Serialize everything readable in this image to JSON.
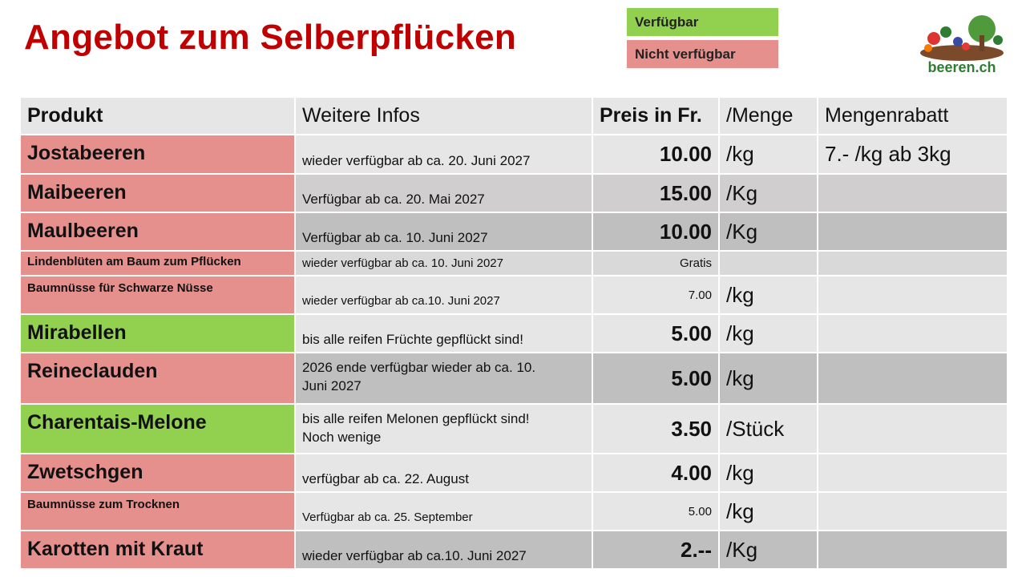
{
  "header": {
    "title": "Angebot zum Selberpflücken",
    "legend": [
      {
        "label": "Verfügbar",
        "color": "#92d050"
      },
      {
        "label": "Nicht verfügbar",
        "color": "#e6908e"
      }
    ],
    "logo": "beeren.ch"
  },
  "table": {
    "columns": [
      "Produkt",
      "Weitere Infos",
      "Preis in Fr.",
      "/Menge",
      "Mengenrabatt"
    ],
    "rows": [
      {
        "product": "Jostabeeren",
        "info": [
          "wieder verfügbar ab ca. 20. Juni 2027"
        ],
        "price": "10.00",
        "unit": "/kg",
        "discount": "7.-  /kg ab 3kg",
        "color": "#e6908e"
      },
      {
        "product": "Maibeeren",
        "info": [
          "Verfügbar ab ca. 20. Mai 2027"
        ],
        "price": "15.00",
        "unit": "/Kg",
        "color": "#e6908e"
      },
      {
        "product": "Maulbeeren",
        "info": [
          "Verfügbar ab ca. 10. Juni 2027"
        ],
        "price": "10.00",
        "unit": "/Kg",
        "color": "#e6908e"
      },
      {
        "product": "Lindenblüten am Baum zum Pflücken",
        "info": [
          " wieder verfügbar ab ca. 10. Juni 2027"
        ],
        "price": "Gratis",
        "color": "#e6908e"
      },
      {
        "product": "Baumnüsse für Schwarze Nüsse",
        "info": [
          "wieder verfügbar ab ca.10. Juni 2027"
        ],
        "price": "7.00",
        "unit": "/kg",
        "color": "#e6908e"
      },
      {
        "product": "Mirabellen",
        "info": [
          "bis alle reifen Früchte gepflückt sind!"
        ],
        "price": "5.00",
        "unit": "/kg",
        "color": "#92d050"
      },
      {
        "product": "Reineclauden",
        "info": [
          "2026 ende verfügbar wieder  ab ca. 10.",
          "Juni 2027"
        ],
        "price": "5.00",
        "unit": "/kg",
        "color": "#e6908e"
      },
      {
        "product": "Charentais-Melone",
        "info": [
          "bis alle reifen Melonen gepflückt sind!",
          "Noch wenige"
        ],
        "price": "3.50",
        "unit": "/Stück",
        "color": "#92d050"
      },
      {
        "product": "Zwetschgen",
        "info": [
          "verfügbar ab ca. 22. August"
        ],
        "price": "4.00",
        "unit": "/kg",
        "color": "#e6908e"
      },
      {
        "product": "Baumnüsse zum Trocknen",
        "info": [
          "Verfügbar ab ca. 25. September"
        ],
        "price": "5.00",
        "unit": "/kg",
        "color": "#e6908e"
      },
      {
        "product": "Karotten mit Kraut",
        "info": [
          "wieder verfügbar ab ca.10. Juni 2027"
        ],
        "price": "2.--",
        "unit": "/Kg",
        "color": "#e6908e"
      }
    ]
  }
}
